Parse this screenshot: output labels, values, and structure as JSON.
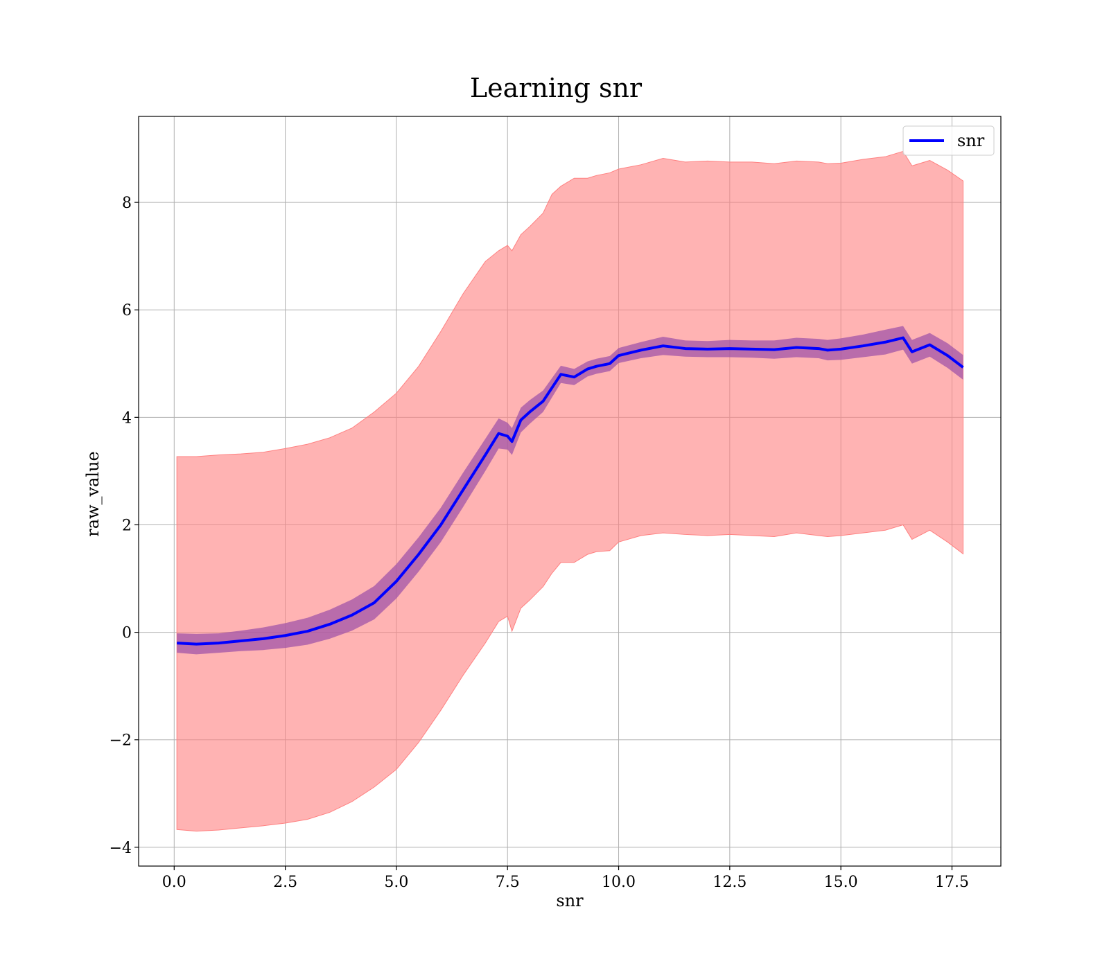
{
  "chart_data": {
    "type": "line",
    "title": "Learning snr",
    "xlabel": "snr",
    "ylabel": "raw_value",
    "xlim": [
      -0.8,
      18.6
    ],
    "ylim": [
      -4.35,
      9.6
    ],
    "x_ticks": [
      0.0,
      2.5,
      5.0,
      7.5,
      10.0,
      12.5,
      15.0,
      17.5
    ],
    "x_tick_labels": [
      "0.0",
      "2.5",
      "5.0",
      "7.5",
      "10.0",
      "12.5",
      "15.0",
      "17.5"
    ],
    "y_ticks": [
      -4,
      -2,
      0,
      2,
      4,
      6,
      8
    ],
    "y_tick_labels": [
      "−4",
      "−2",
      "0",
      "2",
      "4",
      "6",
      "8"
    ],
    "grid": true,
    "legend": {
      "placement": "top-right",
      "entries": [
        "snr"
      ]
    },
    "colors": {
      "line": "#0000ff",
      "outer_band": "#ff8080",
      "inner_band": "#9b4fa8"
    },
    "series": [
      {
        "name": "snr",
        "x": [
          0.06,
          0.5,
          1.0,
          1.5,
          2.0,
          2.5,
          3.0,
          3.5,
          4.0,
          4.5,
          5.0,
          5.5,
          6.0,
          6.5,
          7.0,
          7.3,
          7.5,
          7.6,
          7.8,
          8.0,
          8.3,
          8.5,
          8.7,
          9.0,
          9.3,
          9.5,
          9.8,
          10.0,
          10.5,
          11.0,
          11.5,
          12.0,
          12.5,
          13.0,
          13.5,
          14.0,
          14.5,
          14.7,
          15.0,
          15.5,
          16.0,
          16.4,
          16.6,
          17.0,
          17.4,
          17.75
        ],
        "y": [
          -0.2,
          -0.22,
          -0.2,
          -0.16,
          -0.12,
          -0.06,
          0.02,
          0.15,
          0.32,
          0.55,
          0.95,
          1.45,
          2.0,
          2.65,
          3.3,
          3.7,
          3.65,
          3.55,
          3.95,
          4.1,
          4.3,
          4.55,
          4.8,
          4.75,
          4.9,
          4.95,
          5.0,
          5.15,
          5.25,
          5.33,
          5.28,
          5.27,
          5.28,
          5.27,
          5.26,
          5.3,
          5.28,
          5.25,
          5.27,
          5.33,
          5.4,
          5.48,
          5.22,
          5.35,
          5.15,
          4.93
        ],
        "inner_upper": [
          -0.02,
          -0.03,
          -0.02,
          0.03,
          0.09,
          0.17,
          0.27,
          0.42,
          0.61,
          0.86,
          1.27,
          1.77,
          2.32,
          2.97,
          3.6,
          3.98,
          3.9,
          3.8,
          4.18,
          4.32,
          4.5,
          4.73,
          4.96,
          4.9,
          5.04,
          5.09,
          5.14,
          5.29,
          5.4,
          5.5,
          5.43,
          5.42,
          5.44,
          5.43,
          5.43,
          5.48,
          5.46,
          5.44,
          5.47,
          5.54,
          5.63,
          5.7,
          5.44,
          5.57,
          5.38,
          5.16
        ],
        "inner_lower": [
          -0.38,
          -0.41,
          -0.38,
          -0.35,
          -0.33,
          -0.29,
          -0.23,
          -0.12,
          0.03,
          0.24,
          0.63,
          1.13,
          1.68,
          2.33,
          3.0,
          3.42,
          3.4,
          3.3,
          3.72,
          3.88,
          4.1,
          4.37,
          4.64,
          4.6,
          4.76,
          4.81,
          4.86,
          5.01,
          5.1,
          5.16,
          5.13,
          5.12,
          5.12,
          5.11,
          5.09,
          5.12,
          5.1,
          5.06,
          5.07,
          5.12,
          5.17,
          5.26,
          5.0,
          5.13,
          4.92,
          4.7
        ],
        "outer_upper": [
          3.27,
          3.27,
          3.3,
          3.32,
          3.35,
          3.42,
          3.5,
          3.62,
          3.8,
          4.1,
          4.45,
          4.95,
          5.6,
          6.3,
          6.9,
          7.1,
          7.2,
          7.1,
          7.4,
          7.55,
          7.8,
          8.15,
          8.3,
          8.45,
          8.45,
          8.5,
          8.55,
          8.62,
          8.7,
          8.82,
          8.75,
          8.77,
          8.75,
          8.75,
          8.72,
          8.77,
          8.75,
          8.72,
          8.73,
          8.8,
          8.85,
          8.95,
          8.68,
          8.78,
          8.6,
          8.4
        ],
        "outer_lower": [
          -3.67,
          -3.7,
          -3.68,
          -3.64,
          -3.6,
          -3.55,
          -3.48,
          -3.35,
          -3.15,
          -2.88,
          -2.55,
          -2.05,
          -1.45,
          -0.8,
          -0.2,
          0.2,
          0.3,
          0.02,
          0.45,
          0.6,
          0.85,
          1.1,
          1.3,
          1.3,
          1.45,
          1.5,
          1.52,
          1.68,
          1.8,
          1.85,
          1.82,
          1.8,
          1.82,
          1.8,
          1.78,
          1.85,
          1.8,
          1.78,
          1.8,
          1.85,
          1.9,
          2.0,
          1.73,
          1.9,
          1.68,
          1.46
        ]
      }
    ]
  }
}
